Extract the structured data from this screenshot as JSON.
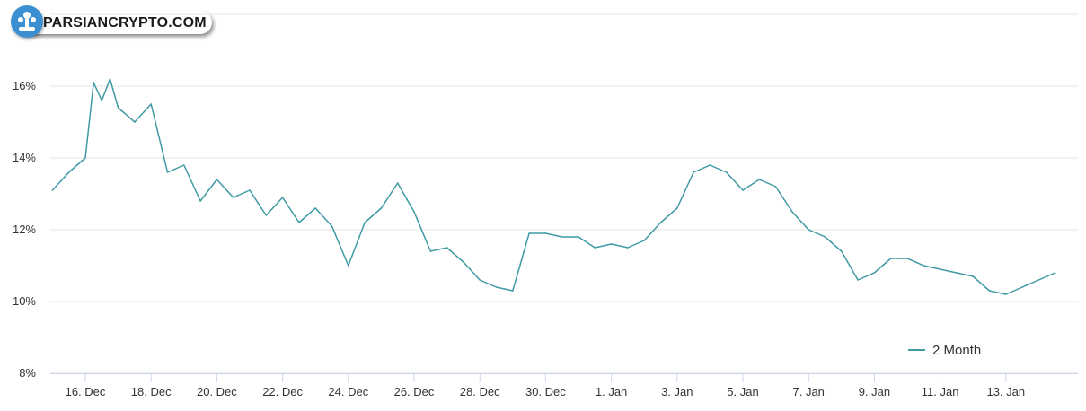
{
  "logo": {
    "text": "PARSIANCRYPTO.COM"
  },
  "colors": {
    "line": "#3f9aa5",
    "grid": "#e6e6e6",
    "axis": "#ccd6eb"
  },
  "chart_data": {
    "type": "line",
    "title": "",
    "xlabel": "",
    "ylabel": "",
    "ylim": [
      8,
      18
    ],
    "y_ticks": [
      "8%",
      "10%",
      "12%",
      "14%",
      "16%"
    ],
    "x_ticks": [
      "16. Dec",
      "18. Dec",
      "20. Dec",
      "22. Dec",
      "24. Dec",
      "26. Dec",
      "28. Dec",
      "30. Dec",
      "1. Jan",
      "3. Jan",
      "5. Jan",
      "7. Jan",
      "9. Jan",
      "11. Jan",
      "13. Jan"
    ],
    "grid": true,
    "legend_position": "bottom-right",
    "series": [
      {
        "name": "2 Month",
        "x": [
          "15 Dec 00:00",
          "15 Dec 12:00",
          "16 Dec 00:00",
          "16 Dec 06:00",
          "16 Dec 12:00",
          "16 Dec 18:00",
          "17 Dec 00:00",
          "17 Dec 12:00",
          "18 Dec 00:00",
          "18 Dec 12:00",
          "19 Dec 00:00",
          "19 Dec 12:00",
          "20 Dec 00:00",
          "20 Dec 12:00",
          "21 Dec 00:00",
          "21 Dec 12:00",
          "22 Dec 00:00",
          "22 Dec 12:00",
          "23 Dec 00:00",
          "23 Dec 12:00",
          "24 Dec 00:00",
          "24 Dec 12:00",
          "25 Dec 00:00",
          "25 Dec 12:00",
          "26 Dec 00:00",
          "26 Dec 12:00",
          "27 Dec 00:00",
          "27 Dec 12:00",
          "28 Dec 00:00",
          "28 Dec 12:00",
          "29 Dec 00:00",
          "29 Dec 12:00",
          "30 Dec 00:00",
          "30 Dec 12:00",
          "31 Dec 00:00",
          "31 Dec 12:00",
          "1 Jan 00:00",
          "1 Jan 12:00",
          "2 Jan 00:00",
          "2 Jan 12:00",
          "3 Jan 00:00",
          "3 Jan 12:00",
          "4 Jan 00:00",
          "4 Jan 12:00",
          "5 Jan 00:00",
          "5 Jan 12:00",
          "6 Jan 00:00",
          "6 Jan 12:00",
          "7 Jan 00:00",
          "7 Jan 12:00",
          "8 Jan 00:00",
          "8 Jan 12:00",
          "9 Jan 00:00",
          "9 Jan 12:00",
          "10 Jan 00:00",
          "10 Jan 12:00",
          "11 Jan 00:00",
          "11 Jan 12:00",
          "12 Jan 00:00",
          "12 Jan 12:00",
          "13 Jan 00:00",
          "13 Jan 12:00",
          "14 Jan 00:00",
          "14 Jan 12:00"
        ],
        "values": [
          13.1,
          13.6,
          14.0,
          16.1,
          15.6,
          16.2,
          15.4,
          15.0,
          15.5,
          13.6,
          13.8,
          12.8,
          13.4,
          12.9,
          13.1,
          12.4,
          12.9,
          12.2,
          12.6,
          12.1,
          11.0,
          12.2,
          12.6,
          13.3,
          12.5,
          11.4,
          11.5,
          11.1,
          10.6,
          10.4,
          10.3,
          11.9,
          11.9,
          11.8,
          11.8,
          11.5,
          11.6,
          11.5,
          11.7,
          12.2,
          12.6,
          13.6,
          13.8,
          13.6,
          13.1,
          13.4,
          13.2,
          12.5,
          12.0,
          11.8,
          11.4,
          10.6,
          10.8,
          11.2,
          11.2,
          11.0,
          10.9,
          10.8,
          10.7,
          10.3,
          10.2,
          10.4,
          10.6,
          10.8
        ]
      }
    ]
  }
}
